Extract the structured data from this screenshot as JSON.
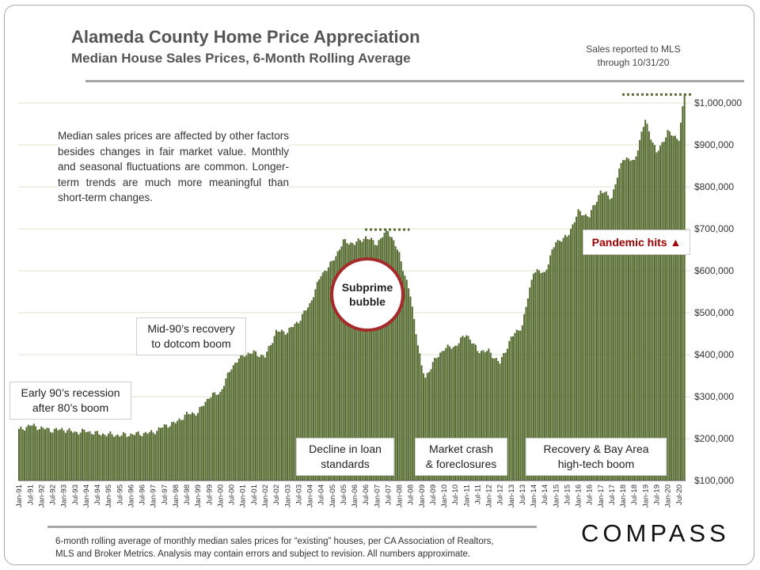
{
  "title": "Alameda County Home Price Appreciation",
  "subtitle": "Median House Sales Prices, 6-Month Rolling Average",
  "sales_note_line1": "Sales reported to MLS",
  "sales_note_line2": "through 10/31/20",
  "intro_text": "Median sales prices are affected by other factors besides changes in fair market value. Monthly and seasonal fluctuations are common. Longer-term trends are much more meaningful than short-term changes.",
  "annotations": {
    "early90s_line1": "Early 90’s recession",
    "early90s_line2": "after 80’s boom",
    "mid90s_line1": "Mid-90’s recovery",
    "mid90s_line2": "to dotcom boom",
    "subprime_line1": "Subprime",
    "subprime_line2": "bubble",
    "decline_line1": "Decline in loan",
    "decline_line2": "standards",
    "crash_line1": "Market crash",
    "crash_line2": "& foreclosures",
    "recovery_line1": "Recovery & Bay Area",
    "recovery_line2": "high-tech boom",
    "pandemic": "Pandemic hits ▲"
  },
  "footnote_line1": "6-month rolling average of monthly median sales prices for “existing” houses, per CA Association of Realtors,",
  "footnote_line2": "MLS and Broker Metrics.  Analysis may contain errors and subject to revision. All numbers approximate.",
  "logo": "COMPASS",
  "colors": {
    "bar": "#556b2f",
    "bar_edge": "#3f5222",
    "peak_line": "#556b2f",
    "grid": "#dde6c8",
    "pandemic": "#a00000",
    "bubble_ring": "#a52a2a"
  },
  "chart_data": {
    "type": "bar",
    "ylim": [
      100000,
      1000000
    ],
    "y_ticks": [
      "$100,000",
      "$200,000",
      "$300,000",
      "$400,000",
      "$500,000",
      "$600,000",
      "$700,000",
      "$800,000",
      "$900,000",
      "$1,000,000"
    ],
    "x_tick_labels": [
      "Jan-91",
      "Jul-91",
      "Jan-92",
      "Jul-92",
      "Jan-93",
      "Jul-93",
      "Jan-94",
      "Jul-94",
      "Jan-95",
      "Jul-95",
      "Jan-96",
      "Jul-96",
      "Jan-97",
      "Jul-97",
      "Jan-98",
      "Jul-98",
      "Jan-99",
      "Jul-99",
      "Jan-00",
      "Jul-00",
      "Jan-01",
      "Jul-01",
      "Jan-02",
      "Jul-02",
      "Jan-03",
      "Jul-03",
      "Jan-04",
      "Jul-04",
      "Jan-05",
      "Jul-05",
      "Jan-06",
      "Jul-06",
      "Jan-07",
      "Jul-07",
      "Jan-08",
      "Jul-08",
      "Jan-09",
      "Jul-09",
      "Jan-10",
      "Jul-10",
      "Jan-11",
      "Jul-11",
      "Jan-12",
      "Jul-12",
      "Jan-13",
      "Jul-13",
      "Jan-14",
      "Jul-14",
      "Jan-15",
      "Jul-15",
      "Jan-16",
      "Jul-16",
      "Jan-17",
      "Jul-17",
      "Jan-18",
      "Jul-18",
      "Jan-19",
      "Jul-19",
      "Jan-20",
      "Jul-20"
    ],
    "first_period": "Jan-91",
    "last_period": "Oct-20",
    "anchors": [
      [
        "Jan-91",
        220000
      ],
      [
        "Jul-91",
        232000
      ],
      [
        "Jan-92",
        225000
      ],
      [
        "Jul-92",
        220000
      ],
      [
        "Jan-93",
        222000
      ],
      [
        "Jul-93",
        215000
      ],
      [
        "Jan-94",
        218000
      ],
      [
        "Jul-94",
        212000
      ],
      [
        "Jan-95",
        210000
      ],
      [
        "Jul-95",
        208000
      ],
      [
        "Jan-96",
        210000
      ],
      [
        "Jul-96",
        212000
      ],
      [
        "Jan-97",
        215000
      ],
      [
        "Jul-97",
        230000
      ],
      [
        "Jan-98",
        238000
      ],
      [
        "Jul-98",
        258000
      ],
      [
        "Jan-99",
        262000
      ],
      [
        "Jul-99",
        300000
      ],
      [
        "Jan-00",
        310000
      ],
      [
        "Jul-00",
        370000
      ],
      [
        "Jan-01",
        400000
      ],
      [
        "Jul-01",
        405000
      ],
      [
        "Jan-02",
        395000
      ],
      [
        "Jul-02",
        455000
      ],
      [
        "Jan-03",
        455000
      ],
      [
        "Jul-03",
        480000
      ],
      [
        "Jan-04",
        520000
      ],
      [
        "Jul-04",
        590000
      ],
      [
        "Jan-05",
        620000
      ],
      [
        "Jul-05",
        670000
      ],
      [
        "Jan-06",
        665000
      ],
      [
        "Jul-06",
        680000
      ],
      [
        "Jan-07",
        665000
      ],
      [
        "Jul-07",
        698000
      ],
      [
        "Jan-08",
        640000
      ],
      [
        "Jul-08",
        540000
      ],
      [
        "Jan-09",
        370000
      ],
      [
        "Mar-09",
        345000
      ],
      [
        "Jul-09",
        380000
      ],
      [
        "Jan-10",
        415000
      ],
      [
        "Jul-10",
        420000
      ],
      [
        "Jan-11",
        450000
      ],
      [
        "Jul-11",
        410000
      ],
      [
        "Jan-12",
        408000
      ],
      [
        "Jul-12",
        380000
      ],
      [
        "Jan-13",
        440000
      ],
      [
        "Jul-13",
        470000
      ],
      [
        "Jan-14",
        600000
      ],
      [
        "Jul-14",
        595000
      ],
      [
        "Jan-15",
        670000
      ],
      [
        "Jul-15",
        680000
      ],
      [
        "Jan-16",
        740000
      ],
      [
        "Jul-16",
        730000
      ],
      [
        "Jan-17",
        790000
      ],
      [
        "Jul-17",
        775000
      ],
      [
        "Jan-18",
        870000
      ],
      [
        "Jul-18",
        860000
      ],
      [
        "Jan-19",
        960000
      ],
      [
        "Jul-19",
        880000
      ],
      [
        "Jan-20",
        930000
      ],
      [
        "Jul-20",
        915000
      ],
      [
        "Oct-20",
        1020000
      ]
    ],
    "peak_2007": 698000,
    "peak_2020": 1020000
  }
}
